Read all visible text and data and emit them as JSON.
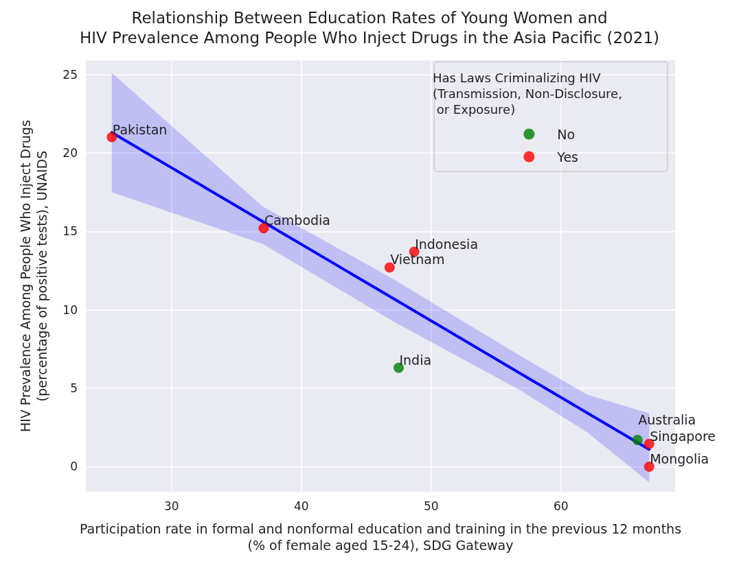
{
  "chart_data": {
    "type": "scatter",
    "title": "Relationship Between Education Rates of Young Women and\nHIV Prevalence Among People Who Inject Drugs in the Asia Pacific (2021)",
    "xlabel": "Participation rate in formal and nonformal education and training in the previous 12 months\n(% of female aged 15-24), SDG Gateway",
    "ylabel": "HIV Prevalence Among People Who Inject Drugs\n(percentage of positive tests), UNAIDS",
    "legend_title": "Has Laws Criminalizing HIV\n(Transmission, Non-Disclosure,\n or Exposure)",
    "xlim": [
      23.4,
      68.8
    ],
    "ylim": [
      -1.6,
      25.9
    ],
    "xticks": [
      30,
      40,
      50,
      60
    ],
    "yticks": [
      0,
      5,
      10,
      15,
      20,
      25
    ],
    "grid": true,
    "legend": "top right",
    "marker": "circle",
    "series": [
      {
        "name": "No",
        "color": "#008000",
        "x": [
          47.5,
          65.9
        ],
        "values": [
          6.3,
          1.7
        ]
      },
      {
        "name": "Yes",
        "color": "#ff0000",
        "x": [
          25.4,
          37.1,
          48.7,
          46.8,
          66.8,
          66.8
        ],
        "values": [
          21.0,
          15.2,
          13.7,
          12.7,
          1.45,
          0.0
        ]
      },
      {
        "type": "line",
        "color": "#0000ff",
        "marker": "none",
        "x": [
          25.4,
          37,
          47,
          57,
          62,
          66.8
        ],
        "values": [
          21.3,
          15.64,
          10.76,
          5.88,
          3.44,
          1.1
        ],
        "lower": [
          17.5,
          14.2,
          9.3,
          4.8,
          2.2,
          -1.0
        ],
        "upper": [
          25.1,
          16.6,
          12.0,
          7.0,
          4.6,
          3.4
        ]
      }
    ],
    "annotations": [
      {
        "text": "Pakistan",
        "x": 25.4,
        "y": 21.0
      },
      {
        "text": "Cambodia",
        "x": 37.1,
        "y": 15.2
      },
      {
        "text": "Indonesia",
        "x": 48.7,
        "y": 13.7
      },
      {
        "text": "Vietnam",
        "x": 46.8,
        "y": 12.7
      },
      {
        "text": "India",
        "x": 47.5,
        "y": 6.3
      },
      {
        "text": "Australia",
        "x": 65.9,
        "y": 1.7
      },
      {
        "text": "Singapore",
        "x": 66.8,
        "y": 1.45
      },
      {
        "text": "Mongolia",
        "x": 66.8,
        "y": 0.0
      }
    ]
  }
}
